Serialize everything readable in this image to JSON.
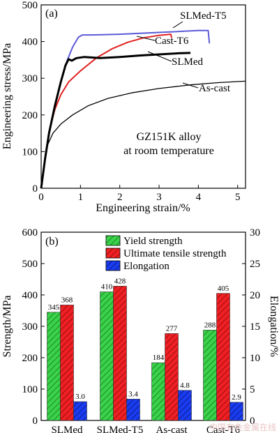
{
  "chart_data": [
    {
      "type": "line",
      "panel_label": "(a)",
      "xlabel": "Engineering strain/%",
      "ylabel": "Engineering stress/MPa",
      "xlim": [
        0,
        5.2
      ],
      "ylim": [
        0,
        500
      ],
      "x_ticks": [
        0,
        1,
        2,
        3,
        4,
        5
      ],
      "y_ticks": [
        0,
        100,
        200,
        300,
        400,
        500
      ],
      "annotation": [
        "GZ151K alloy",
        "at room temperature"
      ],
      "series": [
        {
          "name": "SLMed-T5",
          "color": "#5a5ad8",
          "points": [
            [
              0,
              0
            ],
            [
              0.1,
              80
            ],
            [
              0.2,
              150
            ],
            [
              0.35,
              225
            ],
            [
              0.5,
              290
            ],
            [
              0.65,
              345
            ],
            [
              0.8,
              385
            ],
            [
              0.95,
              412
            ],
            [
              1.05,
              418
            ],
            [
              1.3,
              418
            ],
            [
              2.0,
              420
            ],
            [
              3.0,
              425
            ],
            [
              3.6,
              428
            ],
            [
              4.0,
              430
            ],
            [
              4.25,
              430
            ],
            [
              4.28,
              395
            ]
          ]
        },
        {
          "name": "Cast-T6",
          "color": "#e02020",
          "points": [
            [
              0,
              0
            ],
            [
              0.1,
              85
            ],
            [
              0.2,
              155
            ],
            [
              0.35,
              215
            ],
            [
              0.5,
              255
            ],
            [
              0.7,
              290
            ],
            [
              1.0,
              320
            ],
            [
              1.4,
              355
            ],
            [
              1.8,
              380
            ],
            [
              2.2,
              398
            ],
            [
              2.6,
              410
            ],
            [
              3.0,
              417
            ],
            [
              3.3,
              420
            ],
            [
              3.32,
              410
            ]
          ]
        },
        {
          "name": "SLMed",
          "color": "#000000",
          "stroke_width": 3,
          "points": [
            [
              0,
              0
            ],
            [
              0.1,
              80
            ],
            [
              0.2,
              150
            ],
            [
              0.35,
              225
            ],
            [
              0.5,
              290
            ],
            [
              0.62,
              335
            ],
            [
              0.7,
              352
            ],
            [
              0.78,
              348
            ],
            [
              0.9,
              355
            ],
            [
              1.1,
              358
            ],
            [
              1.5,
              355
            ],
            [
              2.0,
              358
            ],
            [
              2.5,
              362
            ],
            [
              3.0,
              365
            ],
            [
              3.5,
              368
            ],
            [
              3.8,
              369
            ]
          ]
        },
        {
          "name": "As-cast",
          "color": "#000000",
          "stroke_width": 1.3,
          "points": [
            [
              0,
              0
            ],
            [
              0.08,
              70
            ],
            [
              0.15,
              115
            ],
            [
              0.3,
              150
            ],
            [
              0.5,
              175
            ],
            [
              0.8,
              200
            ],
            [
              1.2,
              225
            ],
            [
              1.7,
              245
            ],
            [
              2.3,
              260
            ],
            [
              3.0,
              272
            ],
            [
              3.8,
              282
            ],
            [
              4.5,
              288
            ],
            [
              5.2,
              292
            ]
          ]
        }
      ]
    },
    {
      "type": "bar",
      "panel_label": "(b)",
      "categories": [
        "SLMed",
        "SLMed-T5",
        "As-cast",
        "Cast-T6"
      ],
      "ylabel": "Strength/MPa",
      "y2label": "Elongation/%",
      "ylim": [
        0,
        600
      ],
      "y2lim": [
        0,
        30
      ],
      "y_ticks": [
        0,
        100,
        200,
        300,
        400,
        500,
        600
      ],
      "y2_ticks": [
        0,
        5,
        10,
        15,
        20,
        25,
        30
      ],
      "legend_position": "top-right",
      "series": [
        {
          "name": "Yield strength",
          "color": "#2ecc40",
          "axis": "left",
          "values": [
            345,
            410,
            184,
            288
          ],
          "labels": [
            "345",
            "410",
            "184",
            "288"
          ]
        },
        {
          "name": "Ultimate tensile strength",
          "color": "#e8141c",
          "axis": "left",
          "values": [
            368,
            428,
            277,
            405
          ],
          "labels": [
            "368",
            "428",
            "277",
            "405"
          ]
        },
        {
          "name": "Elongation",
          "color": "#1a3cf0",
          "axis": "right",
          "values": [
            3.0,
            3.4,
            4.8,
            2.9
          ],
          "labels": [
            "3.0",
            "3.4",
            "4.8",
            "2.9"
          ]
        }
      ]
    }
  ],
  "watermark": "中国有色金属在线"
}
